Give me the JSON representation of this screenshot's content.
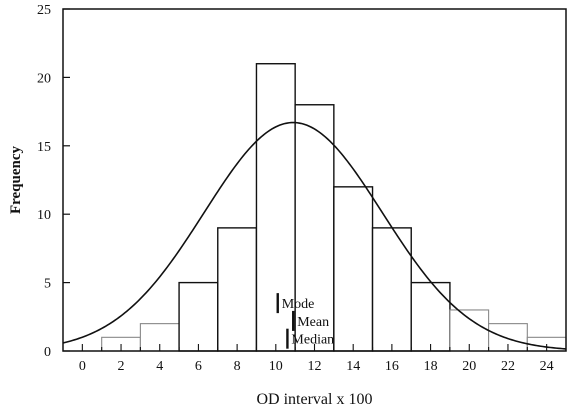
{
  "chart_data": {
    "type": "bar",
    "xlabel": "OD interval x 100",
    "ylabel": "Frequency",
    "xlim": [
      -1,
      25
    ],
    "ylim": [
      0,
      25
    ],
    "x_ticks": [
      0,
      2,
      4,
      6,
      8,
      10,
      12,
      14,
      16,
      18,
      20,
      22,
      24
    ],
    "y_ticks": [
      0,
      5,
      10,
      15,
      20,
      25
    ],
    "bins": [
      {
        "start": 1,
        "end": 3,
        "value": 1
      },
      {
        "start": 3,
        "end": 5,
        "value": 2
      },
      {
        "start": 5,
        "end": 7,
        "value": 5
      },
      {
        "start": 7,
        "end": 9,
        "value": 9
      },
      {
        "start": 9,
        "end": 11,
        "value": 21
      },
      {
        "start": 11,
        "end": 13,
        "value": 18
      },
      {
        "start": 13,
        "end": 15,
        "value": 12
      },
      {
        "start": 15,
        "end": 17,
        "value": 9
      },
      {
        "start": 17,
        "end": 19,
        "value": 5
      },
      {
        "start": 19,
        "end": 21,
        "value": 3
      },
      {
        "start": 21,
        "end": 23,
        "value": 2
      },
      {
        "start": 23,
        "end": 25,
        "value": 1
      }
    ],
    "normal_curve": {
      "mean": 10.9,
      "sd": 4.6,
      "peak": 16.7
    },
    "annotations": [
      {
        "label": "Mode",
        "x": 10.1,
        "y": 3.5
      },
      {
        "label": "Mean",
        "x": 10.9,
        "y": 2.2
      },
      {
        "label": "Median",
        "x": 10.6,
        "y": 0.9
      }
    ],
    "grid": false
  }
}
